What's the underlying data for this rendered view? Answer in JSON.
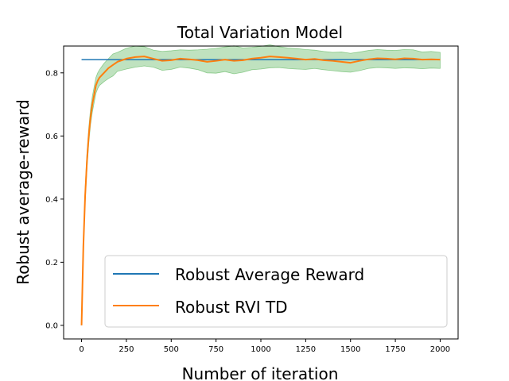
{
  "chart_data": {
    "type": "line",
    "title": "Total Variation Model",
    "xlabel": "Number of iteration",
    "ylabel": "Robust average-reward",
    "xlim": [
      -100,
      2100
    ],
    "ylim": [
      -0.043,
      0.885
    ],
    "xticks": [
      0,
      250,
      500,
      750,
      1000,
      1250,
      1500,
      1750,
      2000
    ],
    "xtick_labels": [
      "0",
      "250",
      "500",
      "750",
      "1000",
      "1250",
      "1500",
      "1750",
      "2000"
    ],
    "yticks": [
      0.0,
      0.2,
      0.4,
      0.6,
      0.8
    ],
    "ytick_labels": [
      "0.0",
      "0.2",
      "0.4",
      "0.6",
      "0.8"
    ],
    "grid": false,
    "legend": "lower-right",
    "colors": {
      "baseline": "#1f77b4",
      "td": "#ff7f0e",
      "band": "#2ca02c"
    },
    "series": [
      {
        "name": "Robust Average Reward",
        "x": [
          0,
          2000
        ],
        "y": [
          0.842,
          0.842
        ]
      },
      {
        "name": "Robust RVI TD",
        "x": [
          0,
          10,
          20,
          30,
          40,
          50,
          60,
          70,
          80,
          90,
          100,
          125,
          150,
          175,
          200,
          250,
          300,
          350,
          400,
          450,
          500,
          550,
          600,
          650,
          700,
          750,
          800,
          850,
          900,
          950,
          1000,
          1050,
          1100,
          1150,
          1200,
          1250,
          1300,
          1350,
          1400,
          1450,
          1500,
          1550,
          1600,
          1650,
          1700,
          1750,
          1800,
          1850,
          1900,
          1950,
          2000
        ],
        "y": [
          0.0,
          0.25,
          0.41,
          0.52,
          0.6,
          0.66,
          0.7,
          0.73,
          0.76,
          0.775,
          0.785,
          0.8,
          0.815,
          0.825,
          0.835,
          0.845,
          0.85,
          0.852,
          0.845,
          0.838,
          0.84,
          0.845,
          0.843,
          0.84,
          0.835,
          0.838,
          0.842,
          0.838,
          0.84,
          0.845,
          0.848,
          0.852,
          0.85,
          0.848,
          0.845,
          0.842,
          0.844,
          0.84,
          0.838,
          0.835,
          0.832,
          0.838,
          0.843,
          0.846,
          0.845,
          0.843,
          0.846,
          0.845,
          0.842,
          0.843,
          0.842
        ]
      }
    ],
    "band": {
      "x": [
        0,
        10,
        20,
        30,
        40,
        50,
        60,
        70,
        80,
        90,
        100,
        125,
        150,
        175,
        200,
        250,
        300,
        350,
        400,
        450,
        500,
        550,
        600,
        650,
        700,
        750,
        800,
        850,
        900,
        950,
        1000,
        1050,
        1100,
        1150,
        1200,
        1250,
        1300,
        1350,
        1400,
        1450,
        1500,
        1550,
        1600,
        1650,
        1700,
        1750,
        1800,
        1850,
        1900,
        1950,
        2000
      ],
      "upper": [
        0.0,
        0.26,
        0.43,
        0.545,
        0.625,
        0.685,
        0.725,
        0.755,
        0.785,
        0.8,
        0.81,
        0.83,
        0.845,
        0.86,
        0.865,
        0.878,
        0.885,
        0.883,
        0.872,
        0.868,
        0.87,
        0.873,
        0.872,
        0.873,
        0.875,
        0.878,
        0.882,
        0.886,
        0.879,
        0.881,
        0.884,
        0.889,
        0.883,
        0.879,
        0.877,
        0.874,
        0.872,
        0.868,
        0.865,
        0.866,
        0.862,
        0.866,
        0.871,
        0.874,
        0.872,
        0.871,
        0.874,
        0.873,
        0.866,
        0.868,
        0.865
      ],
      "lower": [
        0.0,
        0.24,
        0.39,
        0.495,
        0.575,
        0.635,
        0.675,
        0.705,
        0.735,
        0.75,
        0.76,
        0.772,
        0.782,
        0.79,
        0.805,
        0.812,
        0.818,
        0.822,
        0.818,
        0.808,
        0.811,
        0.818,
        0.815,
        0.81,
        0.8,
        0.799,
        0.804,
        0.797,
        0.802,
        0.81,
        0.812,
        0.816,
        0.817,
        0.814,
        0.812,
        0.811,
        0.814,
        0.81,
        0.807,
        0.804,
        0.802,
        0.807,
        0.814,
        0.817,
        0.816,
        0.814,
        0.816,
        0.815,
        0.813,
        0.815,
        0.814
      ]
    }
  }
}
